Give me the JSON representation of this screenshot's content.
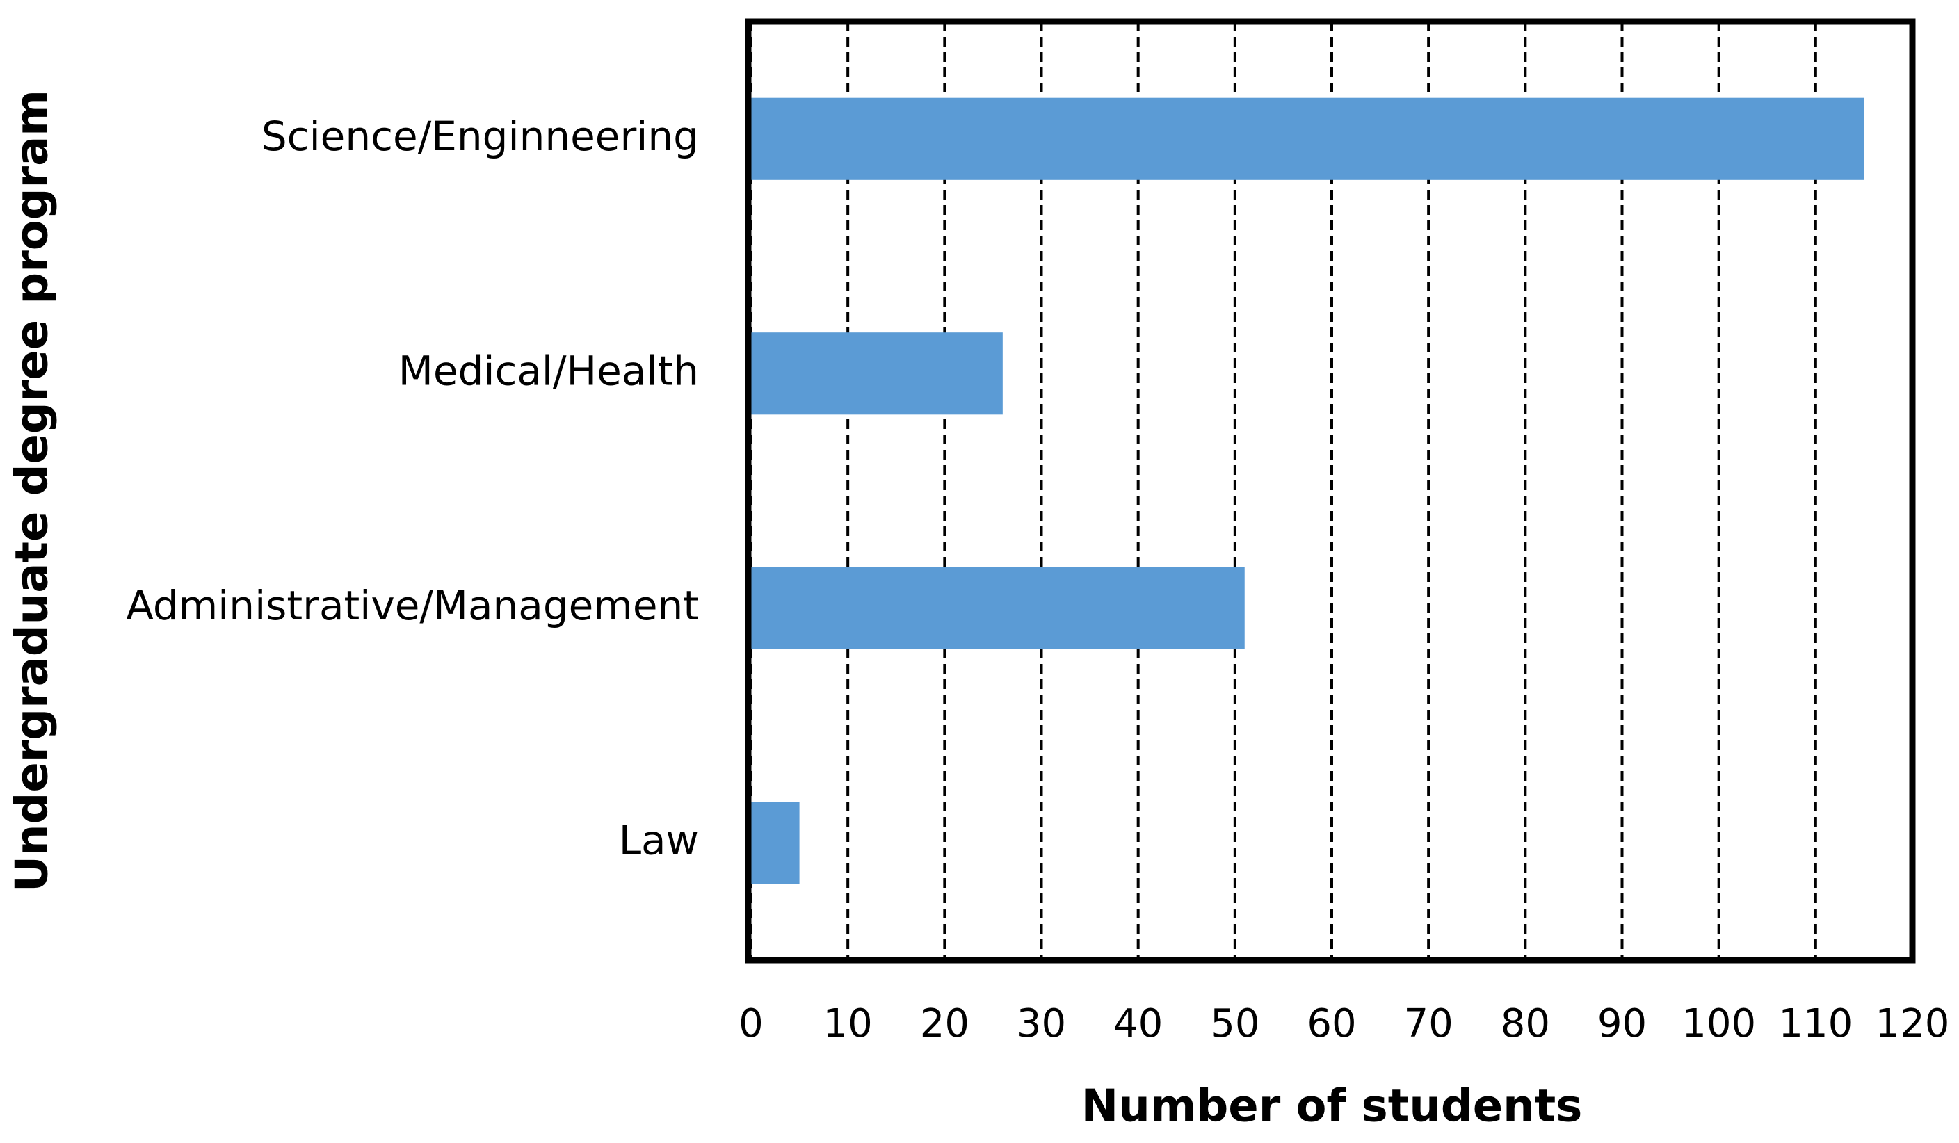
{
  "chart_data": {
    "type": "bar",
    "orientation": "horizontal",
    "x_label": "Number of students",
    "y_label": "Undergraduate degree program",
    "categories": [
      "Science/Enginneering",
      "Medical/Health",
      "Administrative/Management",
      "Law"
    ],
    "values": [
      115,
      26,
      51,
      5
    ],
    "color": "#5b9bd5",
    "xlim": [
      0,
      120
    ],
    "xticks": [
      0,
      10,
      20,
      30,
      40,
      50,
      60,
      70,
      80,
      90,
      100,
      110,
      120
    ],
    "grid": true
  }
}
